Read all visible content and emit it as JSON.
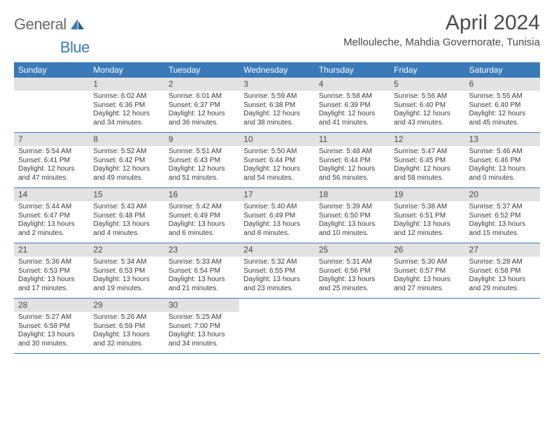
{
  "logo": {
    "general": "General",
    "blue": "Blue"
  },
  "title": "April 2024",
  "location": "Mellouleche, Mahdia Governorate, Tunisia",
  "colors": {
    "header_bg": "#3a7ab8",
    "header_text": "#ffffff",
    "daynum_bg": "#e2e2e2",
    "text": "#3a3a3a",
    "border": "#3a7ab8",
    "logo_gray": "#6a6a6a",
    "logo_blue": "#3a7ab8",
    "page_bg": "#ffffff"
  },
  "weekdays": [
    "Sunday",
    "Monday",
    "Tuesday",
    "Wednesday",
    "Thursday",
    "Friday",
    "Saturday"
  ],
  "weeks": [
    [
      {
        "n": "",
        "sunrise": "",
        "sunset": "",
        "daylight": ""
      },
      {
        "n": "1",
        "sunrise": "Sunrise: 6:02 AM",
        "sunset": "Sunset: 6:36 PM",
        "daylight": "Daylight: 12 hours and 34 minutes."
      },
      {
        "n": "2",
        "sunrise": "Sunrise: 6:01 AM",
        "sunset": "Sunset: 6:37 PM",
        "daylight": "Daylight: 12 hours and 36 minutes."
      },
      {
        "n": "3",
        "sunrise": "Sunrise: 5:59 AM",
        "sunset": "Sunset: 6:38 PM",
        "daylight": "Daylight: 12 hours and 38 minutes."
      },
      {
        "n": "4",
        "sunrise": "Sunrise: 5:58 AM",
        "sunset": "Sunset: 6:39 PM",
        "daylight": "Daylight: 12 hours and 41 minutes."
      },
      {
        "n": "5",
        "sunrise": "Sunrise: 5:56 AM",
        "sunset": "Sunset: 6:40 PM",
        "daylight": "Daylight: 12 hours and 43 minutes."
      },
      {
        "n": "6",
        "sunrise": "Sunrise: 5:55 AM",
        "sunset": "Sunset: 6:40 PM",
        "daylight": "Daylight: 12 hours and 45 minutes."
      }
    ],
    [
      {
        "n": "7",
        "sunrise": "Sunrise: 5:54 AM",
        "sunset": "Sunset: 6:41 PM",
        "daylight": "Daylight: 12 hours and 47 minutes."
      },
      {
        "n": "8",
        "sunrise": "Sunrise: 5:52 AM",
        "sunset": "Sunset: 6:42 PM",
        "daylight": "Daylight: 12 hours and 49 minutes."
      },
      {
        "n": "9",
        "sunrise": "Sunrise: 5:51 AM",
        "sunset": "Sunset: 6:43 PM",
        "daylight": "Daylight: 12 hours and 51 minutes."
      },
      {
        "n": "10",
        "sunrise": "Sunrise: 5:50 AM",
        "sunset": "Sunset: 6:44 PM",
        "daylight": "Daylight: 12 hours and 54 minutes."
      },
      {
        "n": "11",
        "sunrise": "Sunrise: 5:48 AM",
        "sunset": "Sunset: 6:44 PM",
        "daylight": "Daylight: 12 hours and 56 minutes."
      },
      {
        "n": "12",
        "sunrise": "Sunrise: 5:47 AM",
        "sunset": "Sunset: 6:45 PM",
        "daylight": "Daylight: 12 hours and 58 minutes."
      },
      {
        "n": "13",
        "sunrise": "Sunrise: 5:46 AM",
        "sunset": "Sunset: 6:46 PM",
        "daylight": "Daylight: 13 hours and 0 minutes."
      }
    ],
    [
      {
        "n": "14",
        "sunrise": "Sunrise: 5:44 AM",
        "sunset": "Sunset: 6:47 PM",
        "daylight": "Daylight: 13 hours and 2 minutes."
      },
      {
        "n": "15",
        "sunrise": "Sunrise: 5:43 AM",
        "sunset": "Sunset: 6:48 PM",
        "daylight": "Daylight: 13 hours and 4 minutes."
      },
      {
        "n": "16",
        "sunrise": "Sunrise: 5:42 AM",
        "sunset": "Sunset: 6:49 PM",
        "daylight": "Daylight: 13 hours and 6 minutes."
      },
      {
        "n": "17",
        "sunrise": "Sunrise: 5:40 AM",
        "sunset": "Sunset: 6:49 PM",
        "daylight": "Daylight: 13 hours and 8 minutes."
      },
      {
        "n": "18",
        "sunrise": "Sunrise: 5:39 AM",
        "sunset": "Sunset: 6:50 PM",
        "daylight": "Daylight: 13 hours and 10 minutes."
      },
      {
        "n": "19",
        "sunrise": "Sunrise: 5:38 AM",
        "sunset": "Sunset: 6:51 PM",
        "daylight": "Daylight: 13 hours and 12 minutes."
      },
      {
        "n": "20",
        "sunrise": "Sunrise: 5:37 AM",
        "sunset": "Sunset: 6:52 PM",
        "daylight": "Daylight: 13 hours and 15 minutes."
      }
    ],
    [
      {
        "n": "21",
        "sunrise": "Sunrise: 5:36 AM",
        "sunset": "Sunset: 6:53 PM",
        "daylight": "Daylight: 13 hours and 17 minutes."
      },
      {
        "n": "22",
        "sunrise": "Sunrise: 5:34 AM",
        "sunset": "Sunset: 6:53 PM",
        "daylight": "Daylight: 13 hours and 19 minutes."
      },
      {
        "n": "23",
        "sunrise": "Sunrise: 5:33 AM",
        "sunset": "Sunset: 6:54 PM",
        "daylight": "Daylight: 13 hours and 21 minutes."
      },
      {
        "n": "24",
        "sunrise": "Sunrise: 5:32 AM",
        "sunset": "Sunset: 6:55 PM",
        "daylight": "Daylight: 13 hours and 23 minutes."
      },
      {
        "n": "25",
        "sunrise": "Sunrise: 5:31 AM",
        "sunset": "Sunset: 6:56 PM",
        "daylight": "Daylight: 13 hours and 25 minutes."
      },
      {
        "n": "26",
        "sunrise": "Sunrise: 5:30 AM",
        "sunset": "Sunset: 6:57 PM",
        "daylight": "Daylight: 13 hours and 27 minutes."
      },
      {
        "n": "27",
        "sunrise": "Sunrise: 5:28 AM",
        "sunset": "Sunset: 6:58 PM",
        "daylight": "Daylight: 13 hours and 29 minutes."
      }
    ],
    [
      {
        "n": "28",
        "sunrise": "Sunrise: 5:27 AM",
        "sunset": "Sunset: 6:58 PM",
        "daylight": "Daylight: 13 hours and 30 minutes."
      },
      {
        "n": "29",
        "sunrise": "Sunrise: 5:26 AM",
        "sunset": "Sunset: 6:59 PM",
        "daylight": "Daylight: 13 hours and 32 minutes."
      },
      {
        "n": "30",
        "sunrise": "Sunrise: 5:25 AM",
        "sunset": "Sunset: 7:00 PM",
        "daylight": "Daylight: 13 hours and 34 minutes."
      },
      {
        "n": "",
        "sunrise": "",
        "sunset": "",
        "daylight": ""
      },
      {
        "n": "",
        "sunrise": "",
        "sunset": "",
        "daylight": ""
      },
      {
        "n": "",
        "sunrise": "",
        "sunset": "",
        "daylight": ""
      },
      {
        "n": "",
        "sunrise": "",
        "sunset": "",
        "daylight": ""
      }
    ]
  ]
}
